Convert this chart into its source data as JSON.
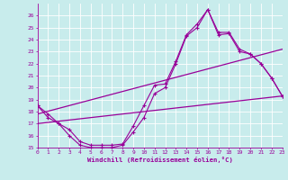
{
  "xlabel": "Windchill (Refroidissement éolien,°C)",
  "bg_color": "#c8ecec",
  "line_color": "#990099",
  "grid_color": "#ffffff",
  "temp_x": [
    0,
    1,
    2,
    3,
    4,
    5,
    6,
    7,
    8,
    9,
    10,
    11,
    12,
    13,
    14,
    15,
    16,
    17,
    18,
    19,
    20,
    21,
    22,
    23
  ],
  "temp_y": [
    18.5,
    17.8,
    17.0,
    16.5,
    15.5,
    15.2,
    15.2,
    15.2,
    15.3,
    16.8,
    18.5,
    20.2,
    20.3,
    22.2,
    24.4,
    25.3,
    26.5,
    24.6,
    24.6,
    23.2,
    22.8,
    22.0,
    20.8,
    19.3
  ],
  "windchill_x": [
    0,
    1,
    2,
    3,
    4,
    5,
    6,
    7,
    8,
    9,
    10,
    11,
    12,
    13,
    14,
    15,
    16,
    17,
    18,
    19,
    20,
    21,
    22,
    23
  ],
  "windchill_y": [
    18.5,
    17.5,
    17.0,
    16.0,
    15.2,
    15.0,
    15.0,
    15.0,
    15.2,
    16.3,
    17.5,
    19.5,
    20.0,
    22.0,
    24.3,
    25.0,
    26.5,
    24.4,
    24.5,
    23.0,
    22.8,
    22.0,
    20.8,
    19.3
  ],
  "trend1_x": [
    0,
    23
  ],
  "trend1_y": [
    17.8,
    23.2
  ],
  "trend2_x": [
    0,
    23
  ],
  "trend2_y": [
    17.0,
    19.3
  ],
  "ylim_min": 15,
  "ylim_max": 27,
  "xlim_min": 0,
  "xlim_max": 23,
  "yticks": [
    15,
    16,
    17,
    18,
    19,
    20,
    21,
    22,
    23,
    24,
    25,
    26
  ],
  "xticks": [
    0,
    1,
    2,
    3,
    4,
    5,
    6,
    7,
    8,
    9,
    10,
    11,
    12,
    13,
    14,
    15,
    16,
    17,
    18,
    19,
    20,
    21,
    22,
    23
  ]
}
